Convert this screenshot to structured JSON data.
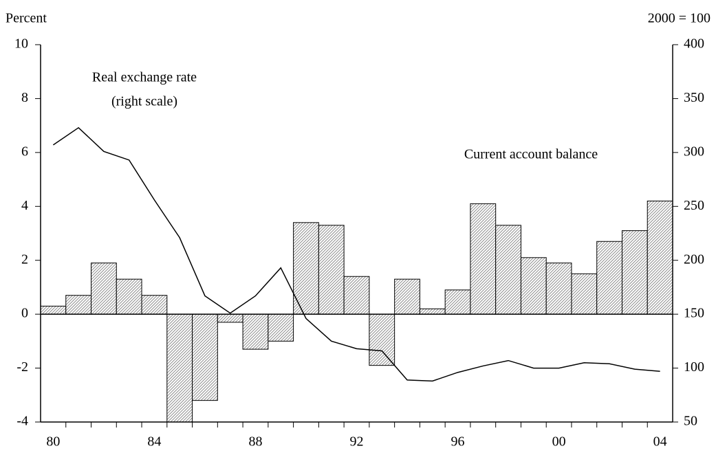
{
  "chart_data": {
    "type": "bar",
    "y_label": "Percent",
    "y2_label": "2000 = 100",
    "categories": [
      "80",
      null,
      null,
      null,
      "84",
      null,
      null,
      null,
      "88",
      null,
      null,
      null,
      "92",
      null,
      null,
      null,
      "96",
      null,
      null,
      null,
      "00",
      null,
      null,
      null,
      "04"
    ],
    "series": [
      {
        "name": "Current account balance",
        "type": "bar",
        "color": "#8c8c8c",
        "values": [
          0.3,
          0.7,
          1.9,
          1.3,
          0.7,
          -4.0,
          -3.2,
          -0.3,
          -1.3,
          -1.0,
          3.4,
          3.3,
          1.4,
          -1.9,
          1.3,
          0.2,
          0.9,
          4.1,
          3.3,
          2.1,
          1.9,
          1.5,
          2.7,
          3.1,
          4.2
        ]
      },
      {
        "name": "Real exchange rate",
        "type": "line",
        "axis": "y2",
        "color": "#000000",
        "values": [
          307,
          323,
          301,
          293,
          256,
          221,
          167,
          151,
          167,
          193,
          146,
          125,
          118,
          116,
          89,
          88,
          96,
          102,
          107,
          100,
          100,
          105,
          104,
          99,
          97
        ]
      }
    ],
    "annotation": "(right scale)",
    "ylim": [
      -4,
      10
    ],
    "yticks": [
      -4,
      -2,
      0,
      2,
      4,
      6,
      8,
      10
    ],
    "y2lim": [
      50,
      400
    ],
    "y2ticks": [
      50,
      100,
      150,
      200,
      250,
      300,
      350,
      400
    ]
  }
}
